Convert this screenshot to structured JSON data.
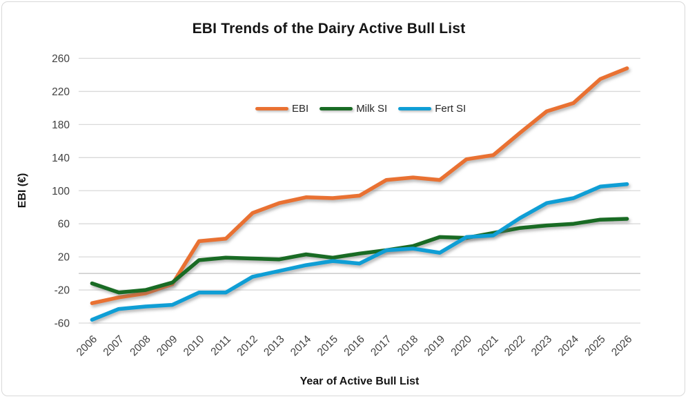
{
  "chart_data": {
    "type": "line",
    "title": "EBI Trends of the Dairy Active Bull List",
    "xlabel": "Year of Active Bull List",
    "ylabel": "EBI (€)",
    "x": [
      2006,
      2007,
      2008,
      2009,
      2010,
      2011,
      2012,
      2013,
      2014,
      2015,
      2016,
      2017,
      2018,
      2019,
      2020,
      2021,
      2022,
      2023,
      2024,
      2025,
      2026
    ],
    "series": [
      {
        "name": "EBI",
        "color": "#E97132",
        "values": [
          -36,
          -29,
          -24,
          -13,
          39,
          42,
          73,
          85,
          92,
          91,
          94,
          113,
          116,
          113,
          138,
          143,
          170,
          196,
          206,
          235,
          248
        ]
      },
      {
        "name": "Milk SI",
        "color": "#196B24",
        "values": [
          -12,
          -23,
          -20,
          -11,
          16,
          19,
          18,
          17,
          23,
          19,
          24,
          28,
          33,
          44,
          43,
          49,
          55,
          58,
          60,
          65,
          66
        ]
      },
      {
        "name": "Fert SI",
        "color": "#0F9ED5",
        "values": [
          -56,
          -43,
          -40,
          -38,
          -23,
          -23,
          -4,
          3,
          10,
          15,
          12,
          28,
          30,
          25,
          44,
          46,
          67,
          85,
          91,
          105,
          108
        ]
      }
    ],
    "ylim": [
      -60,
      260
    ],
    "yticks": [
      -60,
      -20,
      20,
      60,
      100,
      140,
      180,
      220,
      260
    ],
    "grid": true,
    "zero_axis_line": true,
    "legend_position": "top-center-inside",
    "gridline_color": "#D9D9D9",
    "zero_line_color": "#BFBFBF",
    "tick_label_color": "#404040"
  }
}
